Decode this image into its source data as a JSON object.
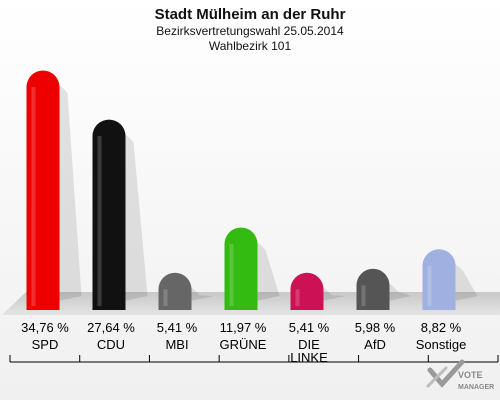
{
  "chart_data": {
    "type": "bar",
    "title": "Stadt Mülheim an der Ruhr",
    "subtitle_1": "Bezirksvertretungswahl 25.05.2014",
    "subtitle_2": "Wahlbezirk 101",
    "categories": [
      "SPD",
      "CDU",
      "MBI",
      "GRÜNE",
      "DIE LINKE",
      "AfD",
      "Sonstige"
    ],
    "category_lines": [
      [
        "SPD"
      ],
      [
        "CDU"
      ],
      [
        "MBI"
      ],
      [
        "GRÜNE"
      ],
      [
        "DIE",
        "LINKE"
      ],
      [
        "AfD"
      ],
      [
        "Sonstige"
      ]
    ],
    "values": [
      34.76,
      27.64,
      5.41,
      11.97,
      5.41,
      5.98,
      8.82
    ],
    "value_labels": [
      "34,76 %",
      "27,64 %",
      "5,41 %",
      "11,97 %",
      "5,41 %",
      "5,98 %",
      "8,82 %"
    ],
    "colors": [
      "#ee0000",
      "#111111",
      "#666666",
      "#33bb11",
      "#cc1155",
      "#555555",
      "#a0b0e0"
    ],
    "ylim": [
      0,
      36
    ]
  },
  "logo": {
    "line1": "VOTE",
    "line2": "MANAGER"
  }
}
